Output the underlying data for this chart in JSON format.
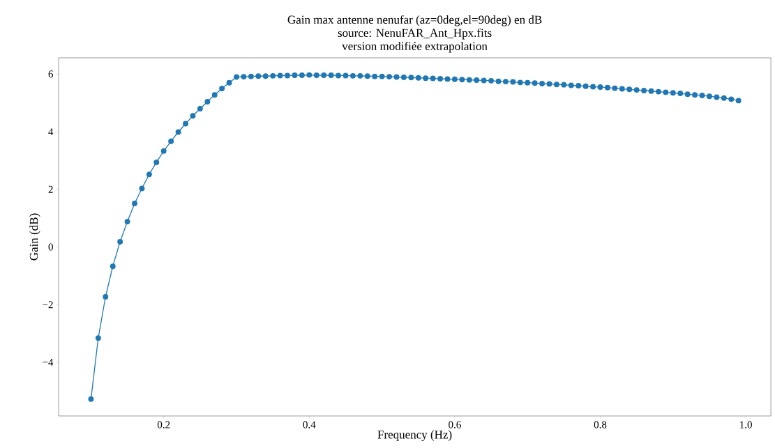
{
  "chart_data": {
    "type": "line",
    "title": "Gain max antenne nenufar (az=0deg,el=90deg) en dB",
    "subtitle": "source: NenuFAR_Ant_Hpx.fits",
    "annotations": [
      "version modifiée extrapolation"
    ],
    "xlabel": "Frequency (Hz)",
    "ylabel": "Gain (dB)",
    "x": [
      0.1,
      0.11,
      0.12,
      0.13,
      0.14,
      0.15,
      0.16,
      0.17,
      0.18,
      0.19,
      0.2,
      0.21,
      0.22,
      0.23,
      0.24,
      0.25,
      0.26,
      0.27,
      0.28,
      0.29,
      0.3,
      0.31,
      0.32,
      0.33,
      0.34,
      0.35,
      0.36,
      0.37,
      0.38,
      0.39,
      0.4,
      0.41,
      0.42,
      0.43,
      0.44,
      0.45,
      0.46,
      0.47,
      0.48,
      0.49,
      0.5,
      0.51,
      0.52,
      0.53,
      0.54,
      0.55,
      0.56,
      0.57,
      0.58,
      0.59,
      0.6,
      0.61,
      0.62,
      0.63,
      0.64,
      0.65,
      0.66,
      0.67,
      0.68,
      0.69,
      0.7,
      0.71,
      0.72,
      0.73,
      0.74,
      0.75,
      0.76,
      0.77,
      0.78,
      0.79,
      0.8,
      0.81,
      0.82,
      0.83,
      0.84,
      0.85,
      0.86,
      0.87,
      0.88,
      0.89,
      0.9,
      0.91,
      0.92,
      0.93,
      0.94,
      0.95,
      0.96,
      0.97,
      0.98,
      0.99
    ],
    "series": [
      {
        "color": "#1f77b4",
        "values": [
          -5.28,
          -3.16,
          -1.73,
          -0.67,
          0.18,
          0.88,
          1.51,
          2.03,
          2.52,
          2.94,
          3.33,
          3.67,
          3.99,
          4.28,
          4.55,
          4.8,
          5.04,
          5.28,
          5.5,
          5.7,
          5.9,
          5.91,
          5.92,
          5.93,
          5.93,
          5.94,
          5.95,
          5.95,
          5.96,
          5.96,
          5.97,
          5.96,
          5.96,
          5.96,
          5.95,
          5.95,
          5.94,
          5.94,
          5.93,
          5.92,
          5.92,
          5.91,
          5.9,
          5.89,
          5.88,
          5.87,
          5.86,
          5.85,
          5.84,
          5.83,
          5.82,
          5.81,
          5.8,
          5.79,
          5.78,
          5.77,
          5.75,
          5.74,
          5.73,
          5.71,
          5.7,
          5.69,
          5.67,
          5.66,
          5.64,
          5.63,
          5.61,
          5.6,
          5.58,
          5.56,
          5.55,
          5.53,
          5.51,
          5.49,
          5.47,
          5.45,
          5.43,
          5.41,
          5.39,
          5.37,
          5.35,
          5.33,
          5.3,
          5.28,
          5.26,
          5.23,
          5.2,
          5.17,
          5.13,
          5.08
        ]
      }
    ],
    "xlim": [
      0.0555,
      1.0345
    ],
    "ylim": [
      -5.865,
      6.565
    ],
    "xticks": [
      {
        "value": 0.2,
        "label": "0.2"
      },
      {
        "value": 0.4,
        "label": "0.4"
      },
      {
        "value": 0.6,
        "label": "0.6"
      },
      {
        "value": 0.8,
        "label": "0.8"
      },
      {
        "value": 1.0,
        "label": "1.0"
      }
    ],
    "yticks": [
      {
        "value": -4,
        "label": "−4"
      },
      {
        "value": -2,
        "label": "−2"
      },
      {
        "value": 0,
        "label": "0"
      },
      {
        "value": 2,
        "label": "2"
      },
      {
        "value": 4,
        "label": "4"
      },
      {
        "value": 6,
        "label": "6"
      }
    ],
    "marker": "circle",
    "line_style": "solid",
    "grid": false
  }
}
